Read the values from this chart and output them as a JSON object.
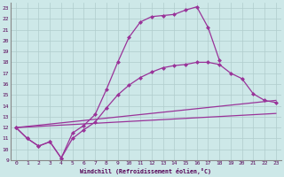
{
  "xlabel": "Windchill (Refroidissement éolien,°C)",
  "background_color": "#cde8e8",
  "line_color": "#993399",
  "grid_color": "#b0cccc",
  "xlim": [
    -0.5,
    23.5
  ],
  "ylim": [
    9,
    23.5
  ],
  "xticks": [
    0,
    1,
    2,
    3,
    4,
    5,
    6,
    7,
    8,
    9,
    10,
    11,
    12,
    13,
    14,
    15,
    16,
    17,
    18,
    19,
    20,
    21,
    22,
    23
  ],
  "yticks": [
    9,
    10,
    11,
    12,
    13,
    14,
    15,
    16,
    17,
    18,
    19,
    20,
    21,
    22,
    23
  ],
  "curve1_x": [
    0,
    1,
    2,
    3,
    4,
    5,
    6,
    7,
    8,
    9,
    10,
    11,
    12,
    13,
    14,
    15,
    16,
    17,
    18
  ],
  "curve1_y": [
    12,
    11,
    10.3,
    10.7,
    9.2,
    11.5,
    12.2,
    13.2,
    15.5,
    18.0,
    20.3,
    21.7,
    22.2,
    22.3,
    22.4,
    22.8,
    23.1,
    21.2,
    18.2
  ],
  "curve2_x": [
    0,
    1,
    2,
    3,
    4,
    5,
    6,
    7,
    8,
    9,
    10,
    11,
    12,
    13,
    14,
    15,
    16,
    17,
    18,
    19,
    20,
    21,
    22,
    23
  ],
  "curve2_y": [
    12,
    11,
    10.3,
    10.7,
    9.2,
    11.0,
    11.8,
    12.5,
    13.8,
    15.0,
    15.9,
    16.6,
    17.1,
    17.5,
    17.7,
    17.8,
    18.0,
    18.0,
    17.8,
    17.0,
    16.5,
    15.1,
    14.5,
    14.3
  ],
  "curve3_x": [
    0,
    23
  ],
  "curve3_y": [
    12,
    14.5
  ],
  "curve4_x": [
    0,
    23
  ],
  "curve4_y": [
    12,
    13.3
  ]
}
